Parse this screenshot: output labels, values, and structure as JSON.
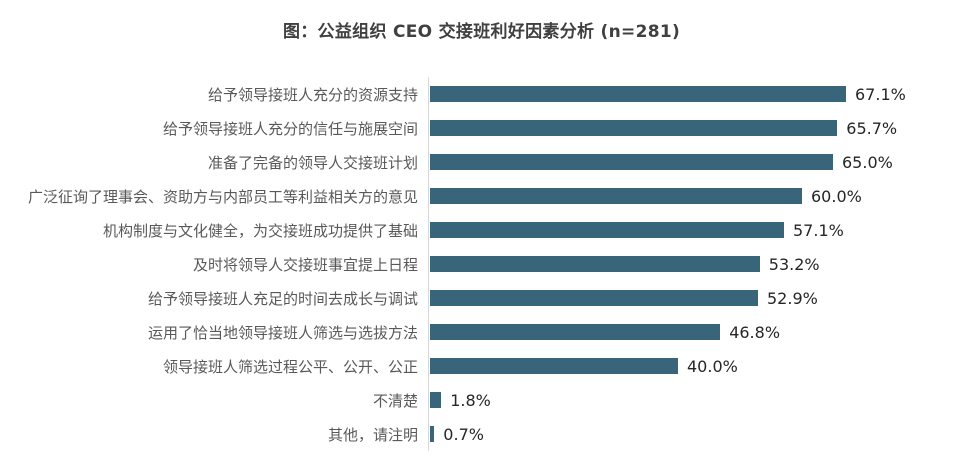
{
  "title": "图：公益组织 CEO 交接班利好因素分析 (n=281)",
  "chart_data": {
    "type": "bar",
    "orientation": "horizontal",
    "title": "图：公益组织 CEO 交接班利好因素分析 (n=281)",
    "sample_size_label": "n=281",
    "categories": [
      "给予领导接班人充分的资源支持",
      "给予领导接班人充分的信任与施展空间",
      "准备了完备的领导人交接班计划",
      "广泛征询了理事会、资助方与内部员工等利益相关方的意见",
      "机构制度与文化健全，为交接班成功提供了基础",
      "及时将领导人交接班事宜提上日程",
      "给予领导接班人充足的时间去成长与调试",
      "运用了恰当地领导接班人筛选与选拔方法",
      "领导接班人筛选过程公平、公开、公正",
      "不清楚",
      "其他，请注明"
    ],
    "values": [
      67.1,
      65.7,
      65.0,
      60.0,
      57.1,
      53.2,
      52.9,
      46.8,
      40.0,
      1.8,
      0.7
    ],
    "value_labels": [
      "67.1%",
      "65.7%",
      "65.0%",
      "60.0%",
      "57.1%",
      "53.2%",
      "52.9%",
      "46.8%",
      "40.0%",
      "1.8%",
      "0.7%"
    ],
    "unit": "%",
    "xlim": [
      0,
      75
    ],
    "grid": "off",
    "legend": "none",
    "value_labels_position": "end-of-bar",
    "colors": {
      "bar": "#39657B",
      "axis_line": "#D9D9D9",
      "category_label": "#595959",
      "value_label": "#262626",
      "title": "#404040"
    }
  }
}
